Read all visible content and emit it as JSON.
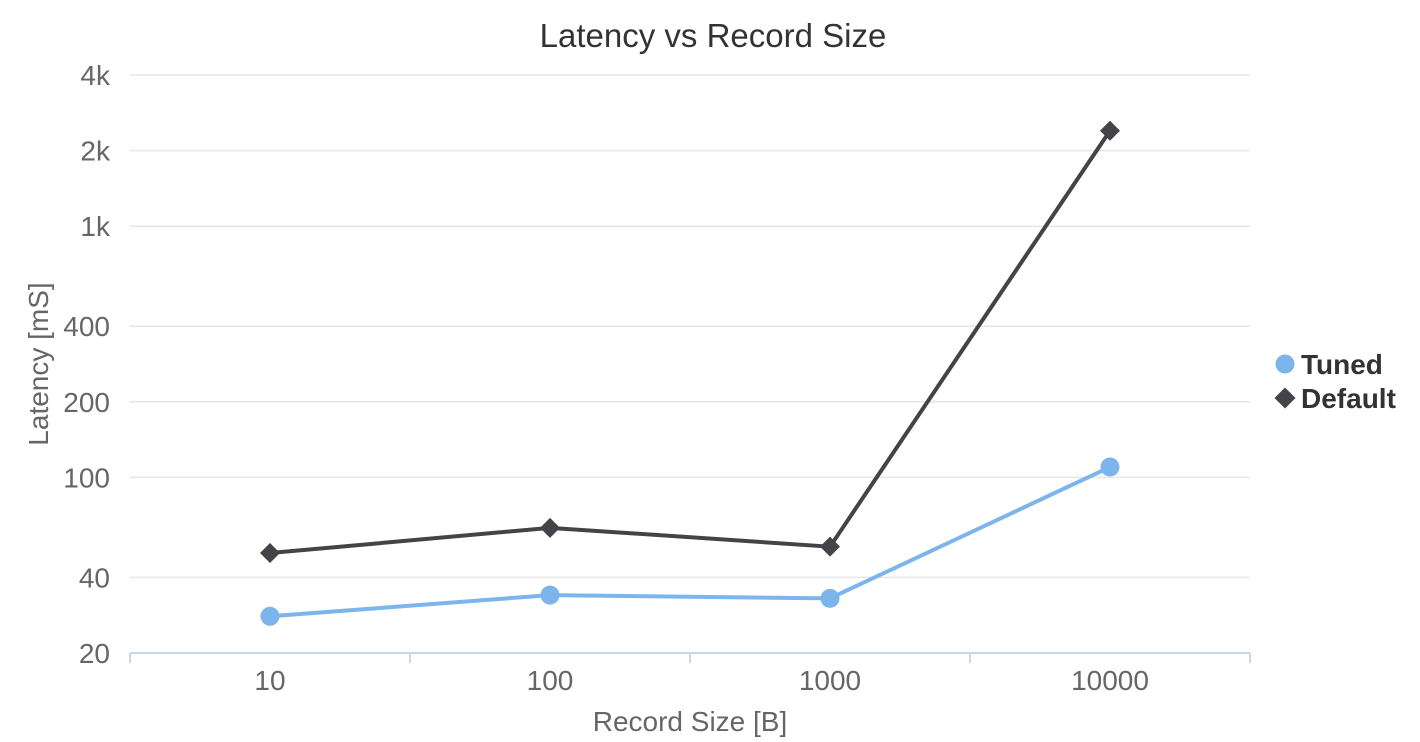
{
  "chart_data": {
    "type": "line",
    "title": "Latency vs Record Size",
    "xlabel": "Record Size [B]",
    "ylabel": "Latency [mS]",
    "y_scale": "log",
    "ylim": [
      20,
      4000
    ],
    "categories": [
      "10",
      "100",
      "1000",
      "10000"
    ],
    "y_ticks": [
      {
        "value": 20,
        "label": "20"
      },
      {
        "value": 40,
        "label": "40"
      },
      {
        "value": 100,
        "label": "100"
      },
      {
        "value": 200,
        "label": "200"
      },
      {
        "value": 400,
        "label": "400"
      },
      {
        "value": 1000,
        "label": "1k"
      },
      {
        "value": 2000,
        "label": "2k"
      },
      {
        "value": 4000,
        "label": "4k"
      }
    ],
    "grid": true,
    "legend_position": "right",
    "series": [
      {
        "name": "Tuned",
        "marker": "circle",
        "color": "#7cb5ec",
        "values": [
          28,
          34,
          33,
          110
        ]
      },
      {
        "name": "Default",
        "marker": "diamond",
        "color": "#434348",
        "values": [
          50,
          63,
          53,
          2400
        ]
      }
    ]
  }
}
